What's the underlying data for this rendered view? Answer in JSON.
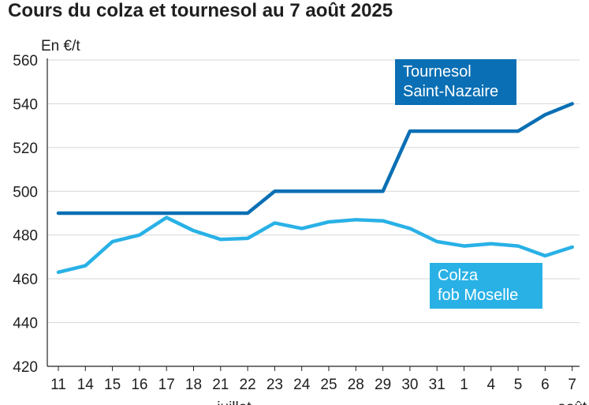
{
  "title": "Cours du colza et tournesol au 7 août 2025",
  "colors": {
    "tournesol": "#0a6fb4",
    "colza": "#29b1e6",
    "grid": "#d6d6d6",
    "axis": "#222222",
    "text": "#1f1f1f"
  },
  "chart_data": {
    "type": "line",
    "ylabel": "En €/t",
    "ylim": [
      420,
      560
    ],
    "yticks": [
      420,
      440,
      460,
      480,
      500,
      520,
      540,
      560
    ],
    "grid": true,
    "categories": [
      "11",
      "14",
      "15",
      "16",
      "17",
      "18",
      "21",
      "22",
      "23",
      "24",
      "25",
      "28",
      "29",
      "30",
      "31",
      "1",
      "4",
      "5",
      "6",
      "7"
    ],
    "month_labels": [
      "juillet",
      "août"
    ],
    "series": [
      {
        "name": "Tournesol Saint-Nazaire",
        "key": "tournesol",
        "values": [
          490,
          490,
          490,
          490,
          490,
          490,
          490,
          490,
          500,
          500,
          500,
          500,
          500,
          527.5,
          527.5,
          527.5,
          527.5,
          527.5,
          535,
          540
        ]
      },
      {
        "name": "Colza fob Moselle",
        "key": "colza",
        "values": [
          463,
          466,
          477,
          480,
          488,
          482,
          478,
          478.5,
          485.5,
          483,
          486,
          487,
          486.5,
          483,
          477,
          475,
          476,
          475,
          470.5,
          474.5
        ]
      }
    ],
    "labels": [
      {
        "series": "tournesol",
        "lines": [
          "Tournesol",
          "Saint-Nazaire"
        ]
      },
      {
        "series": "colza",
        "lines": [
          "Colza",
          "fob Moselle"
        ]
      }
    ]
  }
}
